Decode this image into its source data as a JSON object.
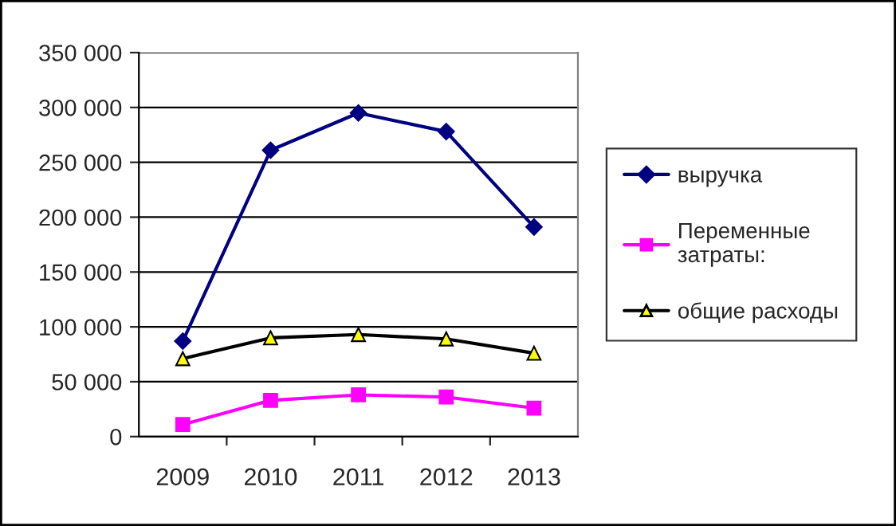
{
  "chart_data": {
    "type": "line",
    "categories": [
      "2009",
      "2010",
      "2011",
      "2012",
      "2013"
    ],
    "series": [
      {
        "name": "выручка",
        "color": "#000080",
        "marker": "diamond",
        "values": [
          87000,
          261000,
          295000,
          278000,
          191000
        ]
      },
      {
        "name": "Переменные\nзатраты:",
        "color": "#ff00ff",
        "marker": "square",
        "values": [
          11000,
          33000,
          38000,
          36000,
          26000
        ]
      },
      {
        "name": "общие расходы",
        "color": "#000000",
        "marker": "triangle",
        "values": [
          71000,
          90000,
          93000,
          89000,
          76000
        ]
      }
    ],
    "ylim": [
      0,
      350000
    ],
    "yticks": [
      0,
      {
        "value": 50000,
        "label": "50 000"
      },
      {
        "value": 100000,
        "label": "100 000"
      },
      {
        "value": 150000,
        "label": "150 000"
      },
      {
        "value": 200000,
        "label": "200 000"
      },
      {
        "value": 250000,
        "label": "250 000"
      },
      {
        "value": 300000,
        "label": "300 000"
      },
      {
        "value": 350000,
        "label": "350 000"
      }
    ],
    "grid": "y",
    "legend": "right",
    "line_style": "solid"
  }
}
